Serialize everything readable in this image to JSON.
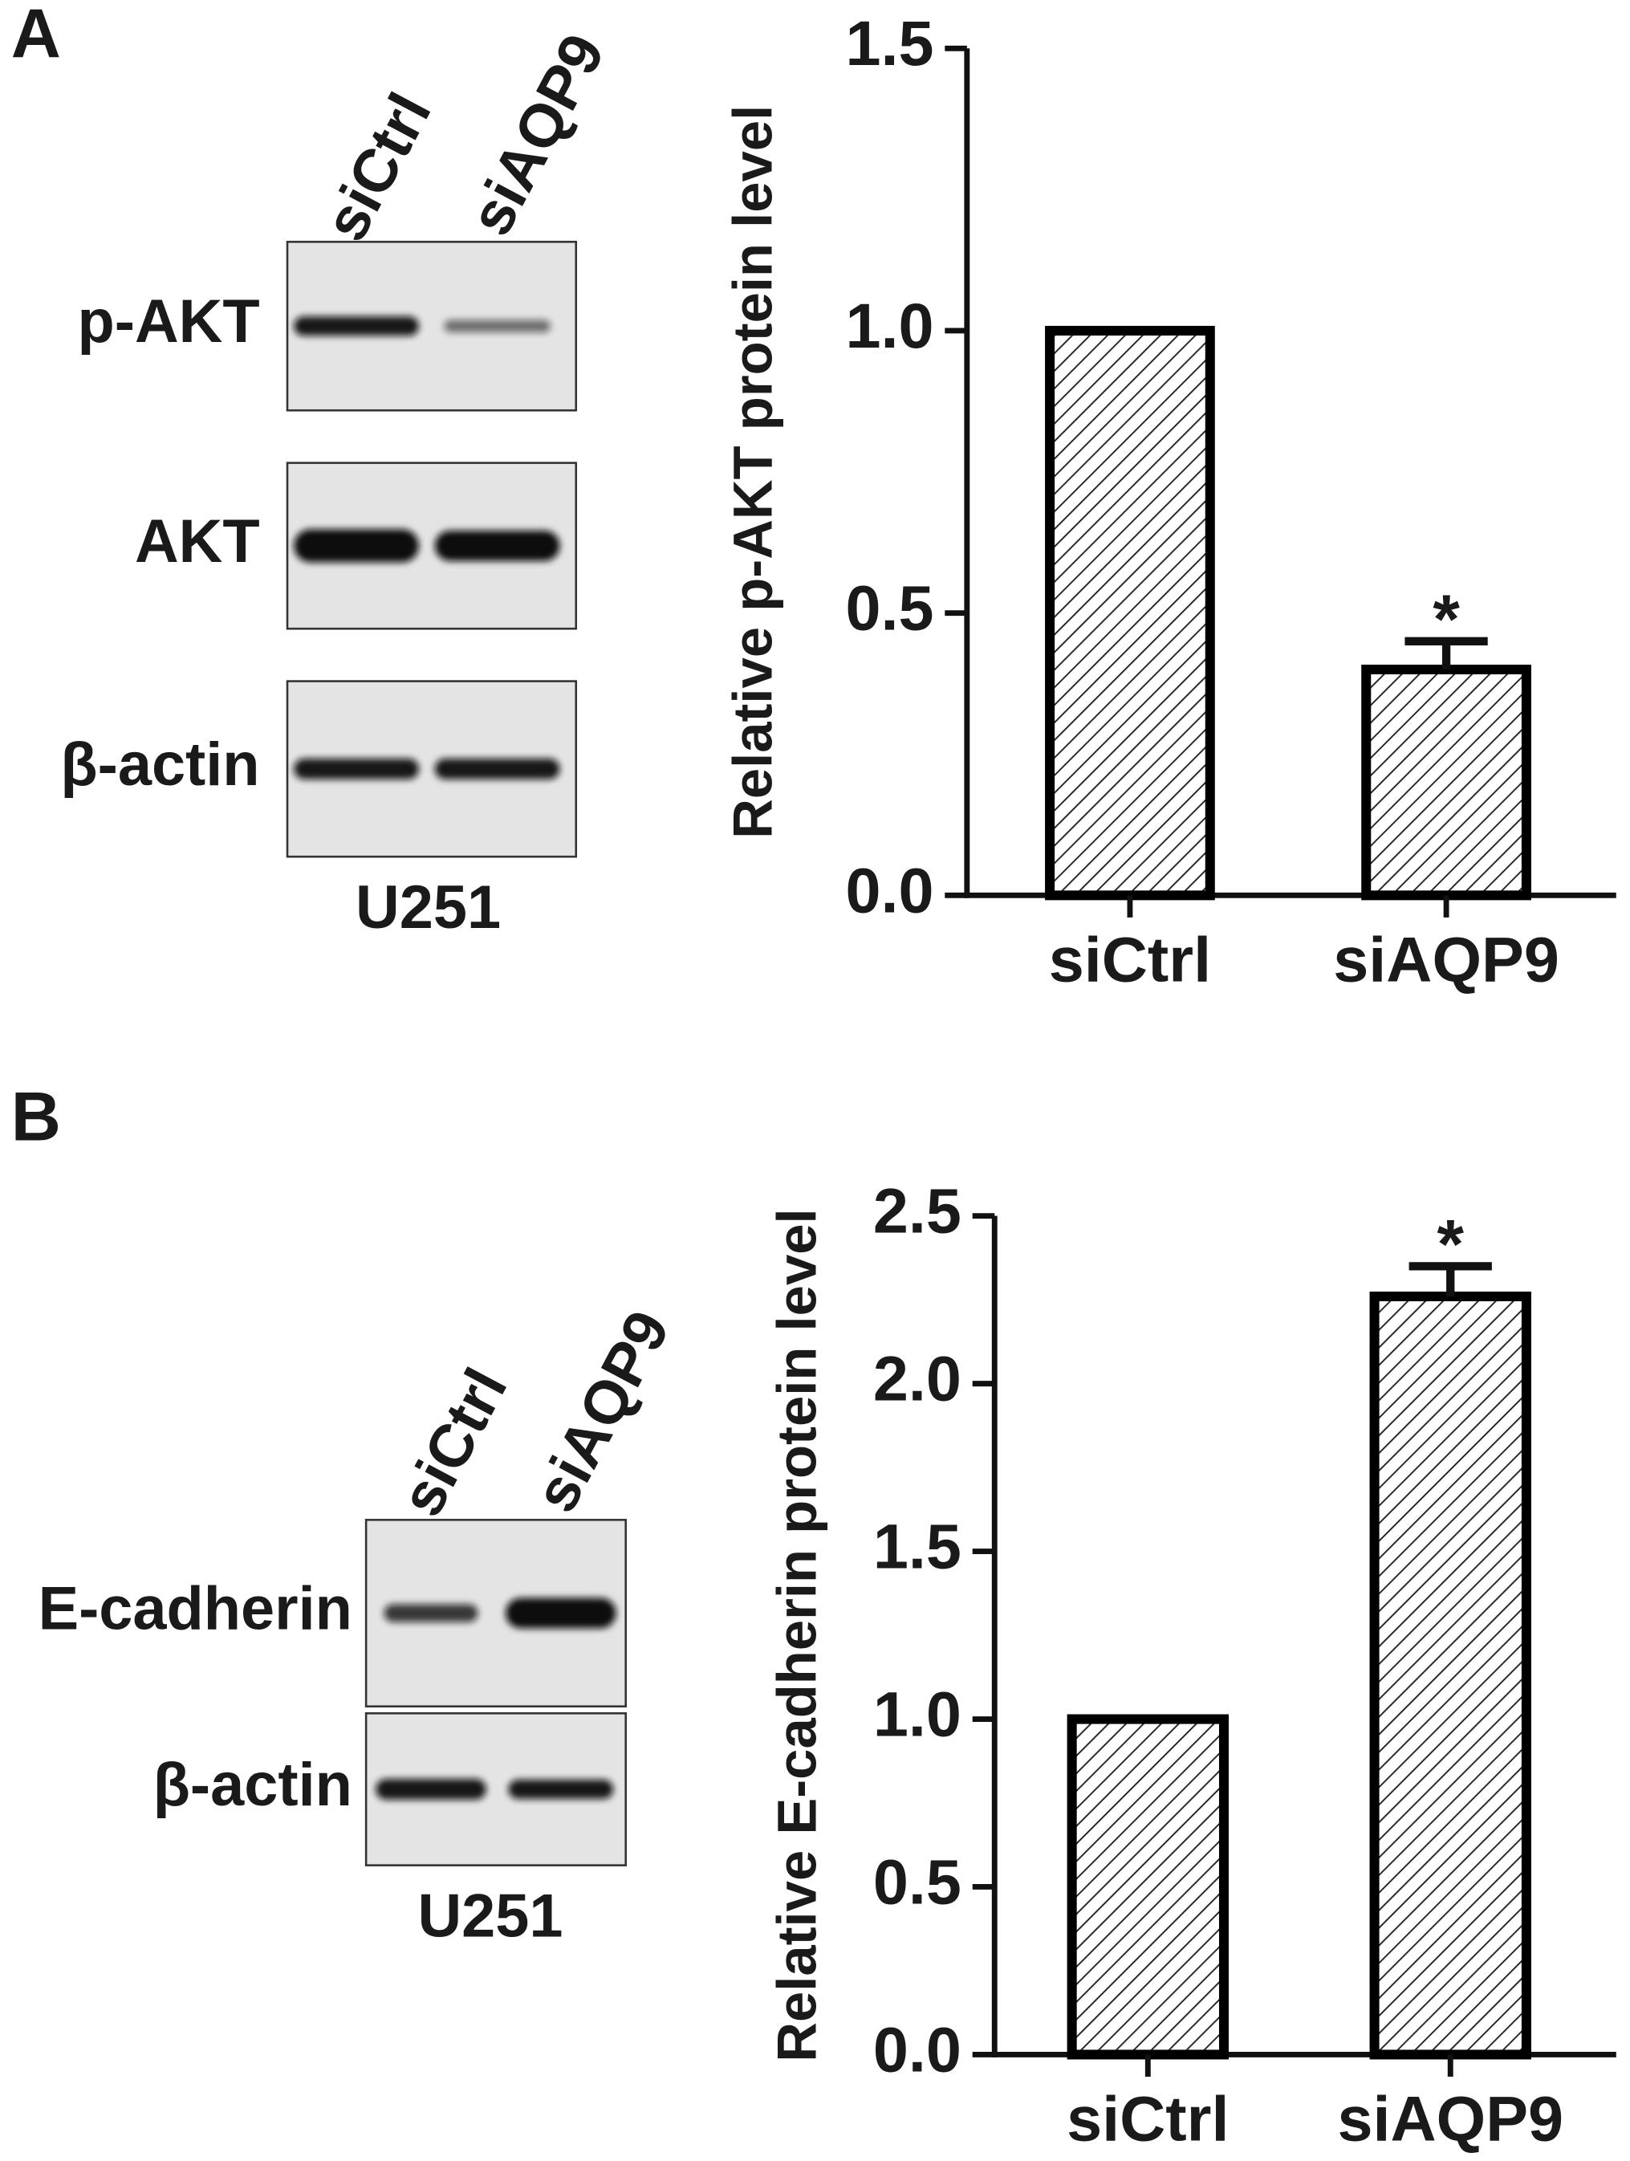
{
  "panels": [
    {
      "label": "A",
      "blot": {
        "lanes": [
          "siCtrl",
          "siAQP9"
        ],
        "rows": [
          "p-AKT",
          "AKT",
          "β-actin"
        ],
        "cell_line": "U251"
      }
    },
    {
      "label": "B",
      "blot": {
        "lanes": [
          "siCtrl",
          "siAQP9"
        ],
        "rows": [
          "E-cadherin",
          "β-actin"
        ],
        "cell_line": "U251"
      }
    }
  ],
  "chart_data": [
    {
      "type": "bar",
      "ylabel": "Relative p-AKT protein level",
      "categories": [
        "siCtrl",
        "siAQP9"
      ],
      "values": [
        1.0,
        0.4
      ],
      "errors": [
        null,
        0.05
      ],
      "significance": [
        null,
        "*"
      ],
      "color": "#000000",
      "ylim": [
        0,
        1.5
      ],
      "yticks": [
        {
          "value": 0,
          "label": "0.0"
        },
        {
          "value": 0.5,
          "label": "0.5"
        },
        {
          "value": 1,
          "label": "1.0"
        },
        {
          "value": 1.5,
          "label": "1.5"
        }
      ]
    },
    {
      "type": "bar",
      "ylabel": "Relative E-cadherin protein level",
      "categories": [
        "siCtrl",
        "siAQP9"
      ],
      "values": [
        1.0,
        2.26
      ],
      "errors": [
        null,
        0.09
      ],
      "significance": [
        null,
        "*"
      ],
      "color": "#000000",
      "ylim": [
        0,
        2.5
      ],
      "yticks": [
        {
          "value": 0,
          "label": "0.0"
        },
        {
          "value": 0.5,
          "label": "0.5"
        },
        {
          "value": 1,
          "label": "1.0"
        },
        {
          "value": 1.5,
          "label": "1.5"
        },
        {
          "value": 2,
          "label": "2.0"
        },
        {
          "value": 2.5,
          "label": "2.5"
        }
      ]
    }
  ]
}
